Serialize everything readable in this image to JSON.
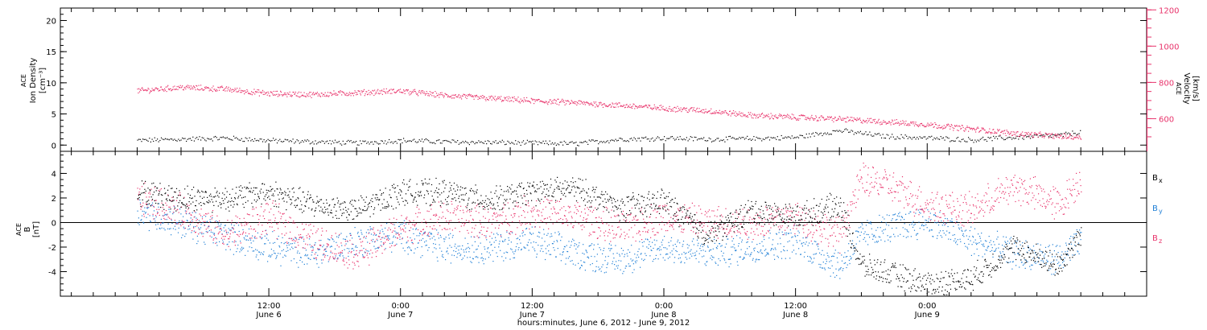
{
  "chart_data": [
    {
      "type": "scatter",
      "panel": "top",
      "ylabel_left": [
        "ACE",
        "Ion Density",
        "[cm⁻³]"
      ],
      "ylabel_right": [
        "ACE",
        "Velocity",
        "[km/s]"
      ],
      "yticks_left": [
        "0",
        "5",
        "10",
        "15",
        "20"
      ],
      "ylim_left": [
        -1,
        22
      ],
      "yticks_right": [
        "600",
        "800",
        "1000",
        "1200"
      ],
      "ylim_right": [
        420,
        1210
      ],
      "series": [
        {
          "color": "#000000",
          "axis": "left",
          "x_hours": [
            0,
            4,
            8,
            12,
            16,
            20,
            24,
            28,
            32,
            36,
            40,
            44,
            48,
            52,
            56,
            60,
            64,
            68,
            72,
            76,
            80,
            84,
            86
          ],
          "values": [
            0.8,
            1.0,
            1.2,
            0.8,
            0.6,
            0.4,
            0.8,
            0.6,
            0.5,
            0.4,
            0.3,
            1.0,
            1.2,
            1.0,
            1.1,
            1.3,
            2.4,
            1.5,
            1.2,
            0.9,
            1.3,
            1.6,
            2.2
          ]
        },
        {
          "color": "#e8336b",
          "axis": "right",
          "x_hours": [
            0,
            4,
            8,
            12,
            16,
            20,
            24,
            28,
            32,
            36,
            40,
            44,
            48,
            52,
            56,
            60,
            64,
            68,
            72,
            76,
            80,
            84,
            86
          ],
          "values": [
            755,
            775,
            765,
            740,
            735,
            745,
            755,
            730,
            715,
            700,
            690,
            675,
            660,
            645,
            620,
            610,
            600,
            585,
            570,
            545,
            520,
            505,
            500
          ]
        }
      ]
    },
    {
      "type": "scatter",
      "panel": "bottom",
      "ylabel": [
        "ACE",
        "B",
        "[nT]"
      ],
      "yticks": [
        "-4",
        "-2",
        "0",
        "2",
        "4"
      ],
      "ylim": [
        -6,
        5.8
      ],
      "legend": [
        {
          "label": "Bx",
          "main": "B",
          "sub": "x",
          "color": "#000000"
        },
        {
          "label": "By",
          "main": "B",
          "sub": "y",
          "color": "#1f7fd6"
        },
        {
          "label": "Bz",
          "main": "B",
          "sub": "z",
          "color": "#e8336b"
        }
      ],
      "series": [
        {
          "color": "#000000",
          "x_hours": [
            0,
            4,
            8,
            12,
            16,
            20,
            24,
            28,
            32,
            36,
            40,
            44,
            48,
            52,
            56,
            60,
            64,
            66,
            68,
            72,
            76,
            80,
            84,
            86
          ],
          "values": [
            2.5,
            2.0,
            2.0,
            2.5,
            1.5,
            1.0,
            2.5,
            2.5,
            1.8,
            2.5,
            2.8,
            1.2,
            1.8,
            -1.0,
            1.0,
            0.5,
            1.5,
            -3.5,
            -4.0,
            -5.0,
            -4.5,
            -2.0,
            -3.5,
            -1.0
          ]
        },
        {
          "color": "#1f7fd6",
          "x_hours": [
            0,
            4,
            8,
            12,
            16,
            20,
            24,
            28,
            32,
            36,
            40,
            44,
            48,
            52,
            56,
            60,
            64,
            66,
            68,
            72,
            76,
            80,
            84,
            86
          ],
          "values": [
            1.0,
            0.0,
            -1.0,
            -2.0,
            -2.5,
            -1.5,
            -1.0,
            -2.0,
            -2.0,
            -1.5,
            -2.5,
            -3.0,
            -2.0,
            -2.5,
            -2.0,
            -1.5,
            -3.5,
            -1.0,
            -0.5,
            0.2,
            -1.5,
            -2.5,
            -3.0,
            -1.5
          ]
        },
        {
          "color": "#e8336b",
          "x_hours": [
            0,
            4,
            8,
            12,
            16,
            20,
            24,
            28,
            32,
            36,
            40,
            44,
            48,
            52,
            56,
            60,
            64,
            66,
            68,
            72,
            76,
            80,
            84,
            86
          ],
          "values": [
            2.0,
            1.0,
            -1.0,
            0.5,
            -1.5,
            -2.5,
            -0.5,
            0.5,
            0.0,
            1.0,
            0.5,
            -0.5,
            0.5,
            0.0,
            0.0,
            0.5,
            -1.0,
            3.5,
            3.2,
            1.5,
            1.0,
            3.0,
            1.5,
            3.5
          ]
        }
      ]
    }
  ],
  "time_axis": {
    "tick_times": [
      "12:00",
      "0:00",
      "12:00",
      "0:00",
      "12:00",
      "0:00"
    ],
    "tick_dates": [
      "June 6",
      "June 7",
      "June 7",
      "June 8",
      "June 8",
      "June 9"
    ],
    "tick_hours": [
      12,
      24,
      36,
      48,
      60,
      72
    ],
    "xlim_hours": [
      -7,
      92
    ],
    "label": "hours:minutes, June  6, 2012 - June  9, 2012"
  },
  "colors": {
    "density": "#000000",
    "velocity": "#e8336b",
    "bx": "#000000",
    "by": "#1f7fd6",
    "bz": "#e8336b",
    "axis": "#000000"
  }
}
